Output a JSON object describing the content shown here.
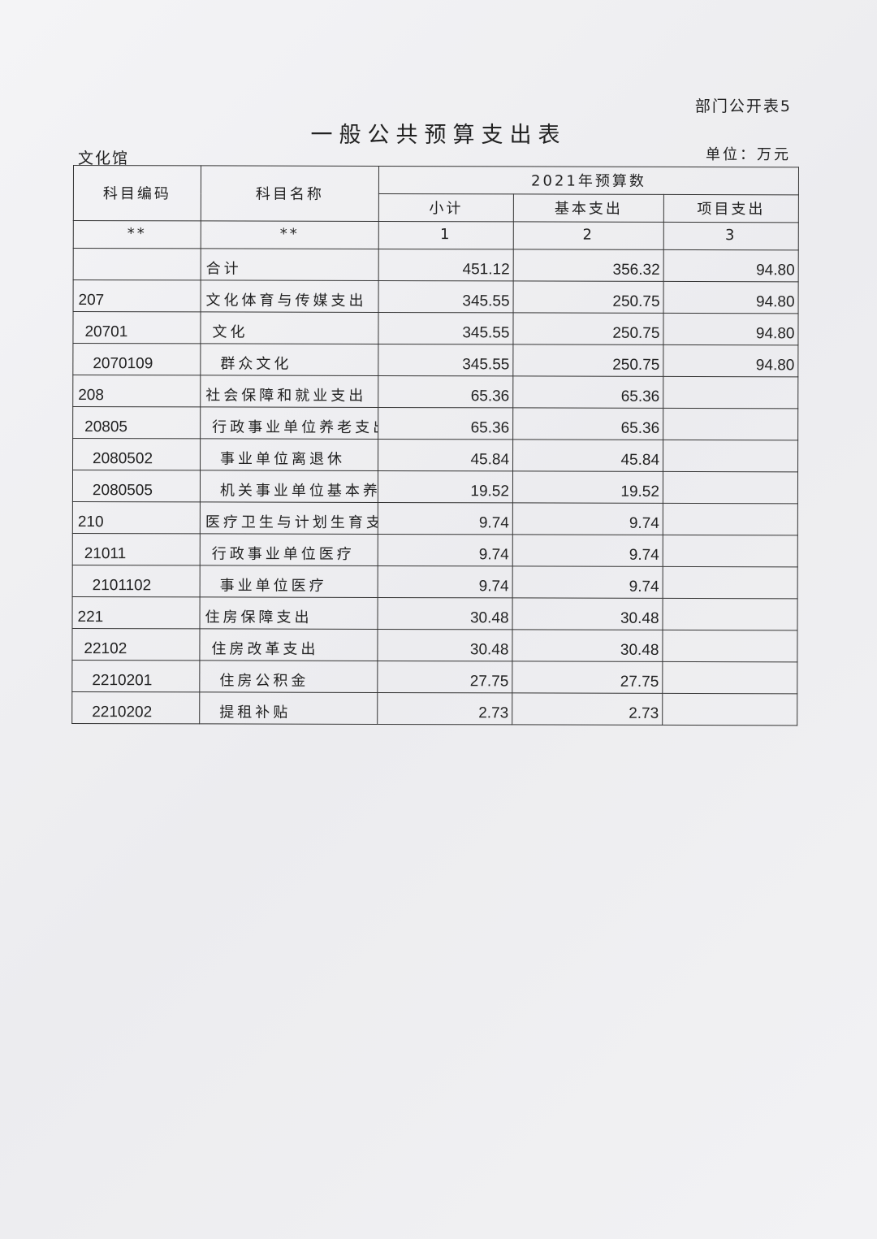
{
  "header": {
    "table_no": "部门公开表5",
    "title": "一般公共预算支出表",
    "org": "文化馆",
    "unit": "单位：万元"
  },
  "columns": {
    "code": "科目编码",
    "name": "科目名称",
    "year_group": "2021年预算数",
    "subtotal": "小计",
    "basic": "基本支出",
    "project": "项目支出",
    "code_mark": "**",
    "name_mark": "**",
    "n1": "1",
    "n2": "2",
    "n3": "3"
  },
  "rows": [
    {
      "code": "",
      "name": "合计",
      "subtotal": "451.12",
      "basic": "356.32",
      "project": "94.80",
      "level": 1
    },
    {
      "code": "207",
      "name": "文化体育与传媒支出",
      "subtotal": "345.55",
      "basic": "250.75",
      "project": "94.80",
      "level": 1
    },
    {
      "code": "20701",
      "name": "文化",
      "subtotal": "345.55",
      "basic": "250.75",
      "project": "94.80",
      "level": 2
    },
    {
      "code": "2070109",
      "name": "群众文化",
      "subtotal": "345.55",
      "basic": "250.75",
      "project": "94.80",
      "level": 3
    },
    {
      "code": "208",
      "name": "社会保障和就业支出",
      "subtotal": "65.36",
      "basic": "65.36",
      "project": "",
      "level": 1
    },
    {
      "code": "20805",
      "name": "行政事业单位养老支出",
      "subtotal": "65.36",
      "basic": "65.36",
      "project": "",
      "level": 2
    },
    {
      "code": "2080502",
      "name": "事业单位离退休",
      "subtotal": "45.84",
      "basic": "45.84",
      "project": "",
      "level": 3
    },
    {
      "code": "2080505",
      "name": "机关事业单位基本养老保险缴费支出",
      "subtotal": "19.52",
      "basic": "19.52",
      "project": "",
      "level": 3
    },
    {
      "code": "210",
      "name": "医疗卫生与计划生育支出",
      "subtotal": "9.74",
      "basic": "9.74",
      "project": "",
      "level": 1
    },
    {
      "code": "21011",
      "name": "行政事业单位医疗",
      "subtotal": "9.74",
      "basic": "9.74",
      "project": "",
      "level": 2
    },
    {
      "code": "2101102",
      "name": "事业单位医疗",
      "subtotal": "9.74",
      "basic": "9.74",
      "project": "",
      "level": 3
    },
    {
      "code": "221",
      "name": "住房保障支出",
      "subtotal": "30.48",
      "basic": "30.48",
      "project": "",
      "level": 1
    },
    {
      "code": "22102",
      "name": "住房改革支出",
      "subtotal": "30.48",
      "basic": "30.48",
      "project": "",
      "level": 2
    },
    {
      "code": "2210201",
      "name": "住房公积金",
      "subtotal": "27.75",
      "basic": "27.75",
      "project": "",
      "level": 3
    },
    {
      "code": "2210202",
      "name": "提租补贴",
      "subtotal": "2.73",
      "basic": "2.73",
      "project": "",
      "level": 3
    }
  ]
}
